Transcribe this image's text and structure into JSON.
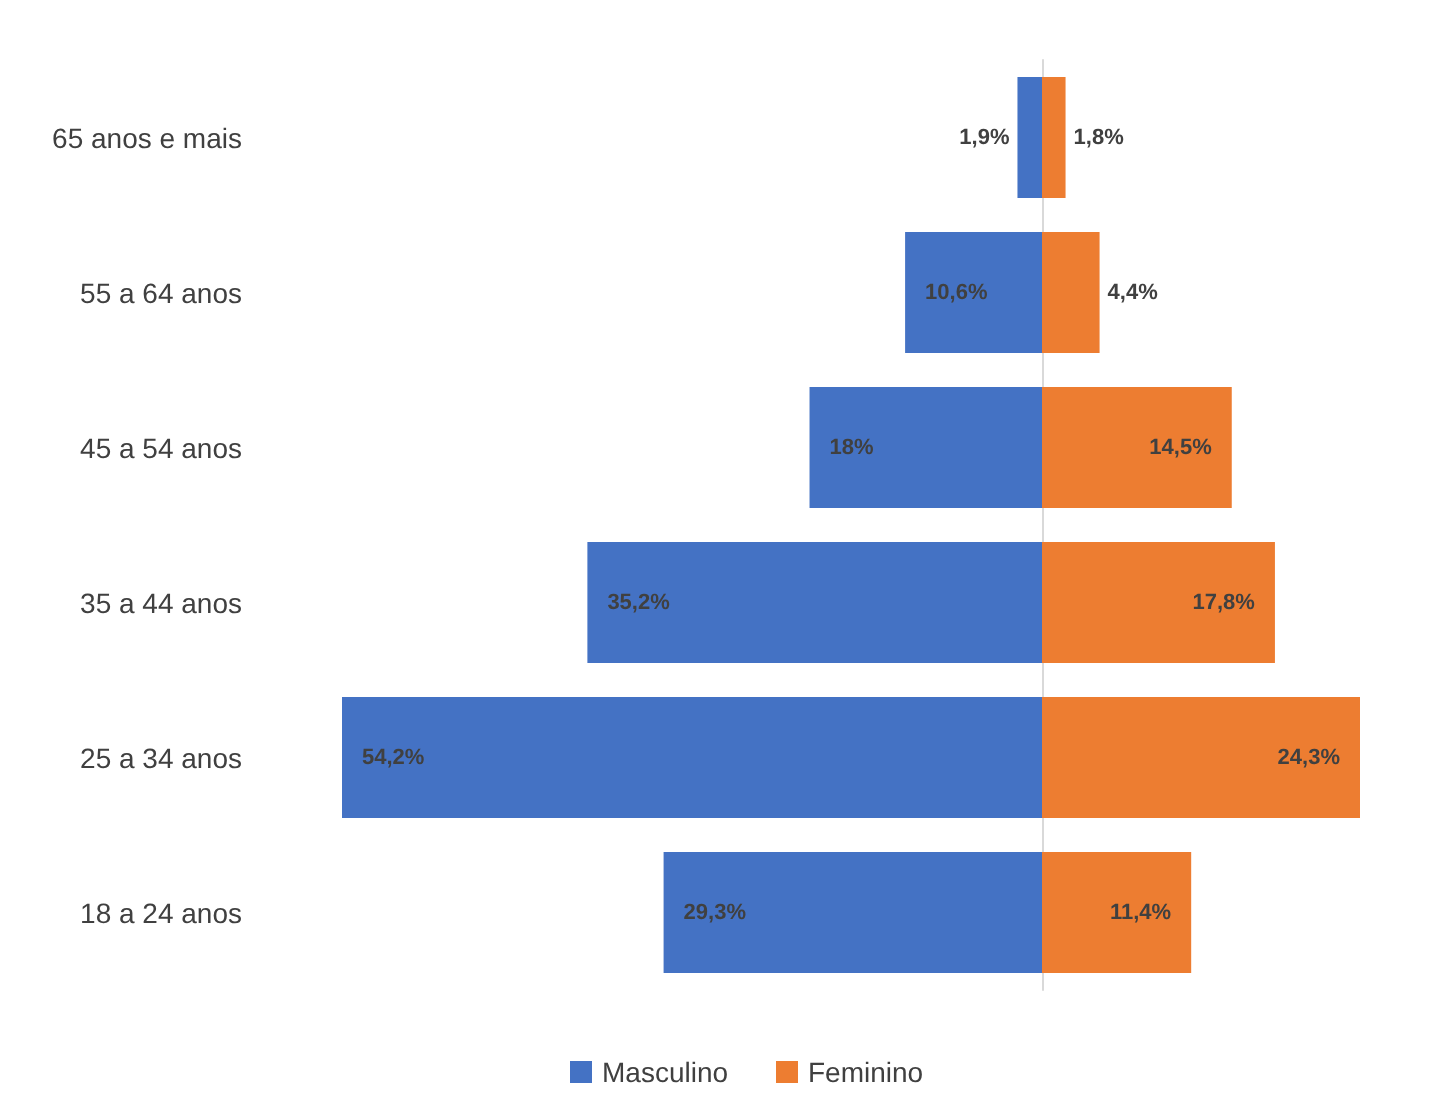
{
  "chart_data": [
    {
      "type": "bar",
      "orientation": "horizontal",
      "categories": [
        "65 anos e mais",
        "55 a 64 anos",
        "45 a 54 anos",
        "35 a 44 anos",
        "25 a 34 anos",
        "18 a 24 anos"
      ],
      "xlim": [
        54.2,
        0
      ],
      "tick_labels": "y",
      "series": [
        {
          "name": "Masculino",
          "color": "#4472c4",
          "values": [
            1.9,
            10.6,
            18,
            35.2,
            54.2,
            29.3
          ],
          "value_labels": [
            "1,9%",
            "10,6%",
            "18%",
            "35,2%",
            "54,2%",
            "29,3%"
          ]
        }
      ],
      "legend": "bottom",
      "grid": false
    },
    {
      "type": "bar",
      "orientation": "horizontal",
      "categories": [
        null,
        null,
        null,
        null,
        null,
        null
      ],
      "xlim": [
        0,
        24.3
      ],
      "tick_labels": false,
      "series": [
        {
          "name": "Feminino",
          "color": "#ed7d31",
          "values": [
            1.8,
            4.4,
            14.5,
            17.8,
            24.3,
            11.4
          ],
          "value_labels": [
            "1,8%",
            "4,4%",
            "14,5%",
            "17,8%",
            "24,3%",
            "11,4%"
          ]
        }
      ],
      "legend": "bottom",
      "grid": false
    }
  ]
}
